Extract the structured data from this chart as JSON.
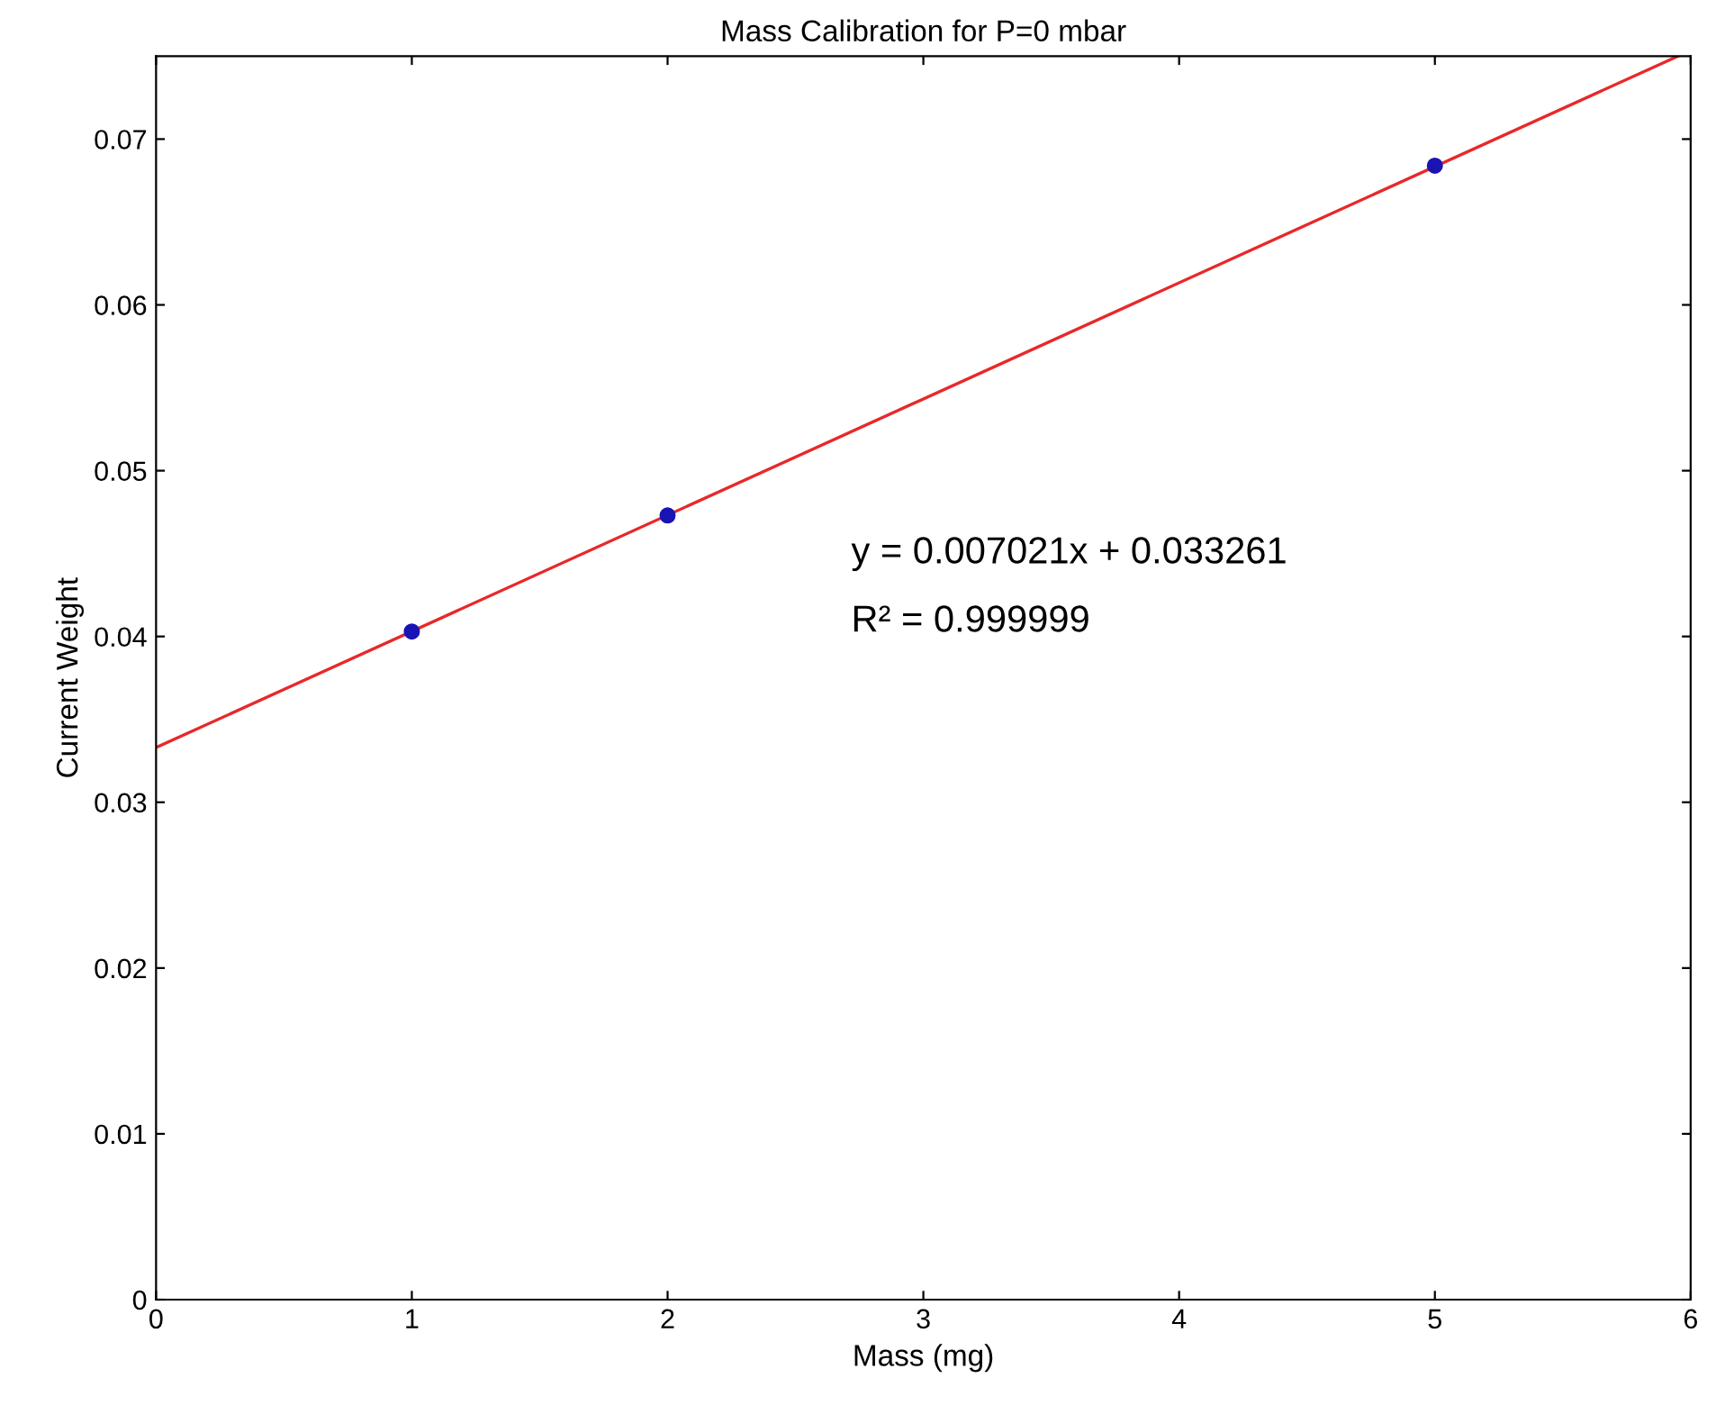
{
  "chart_data": {
    "type": "scatter",
    "title": "Mass Calibration for P=0 mbar",
    "xlabel": "Mass (mg)",
    "ylabel": "Current Weight",
    "xlim": [
      0,
      6
    ],
    "xticks": [
      0,
      1,
      2,
      3,
      4,
      5,
      6
    ],
    "ylim": [
      0,
      0.075
    ],
    "yticks": [
      0,
      0.01,
      0.02,
      0.03,
      0.04,
      0.05,
      0.06,
      0.07
    ],
    "grid": false,
    "legend": false,
    "series": [
      {
        "type": "line",
        "color": "#e8282a",
        "x": [
          0,
          5.95
        ],
        "values": [
          0.0333,
          0.075
        ],
        "marker": "none",
        "line_style": "solid"
      },
      {
        "color": "#1a14b4",
        "x": [
          1,
          2,
          5
        ],
        "values": [
          0.0403,
          0.0473,
          0.0684
        ],
        "marker": "circle"
      }
    ],
    "annotations": [
      "y = 0.007021x + 0.033261",
      "R² = 0.999999"
    ]
  }
}
